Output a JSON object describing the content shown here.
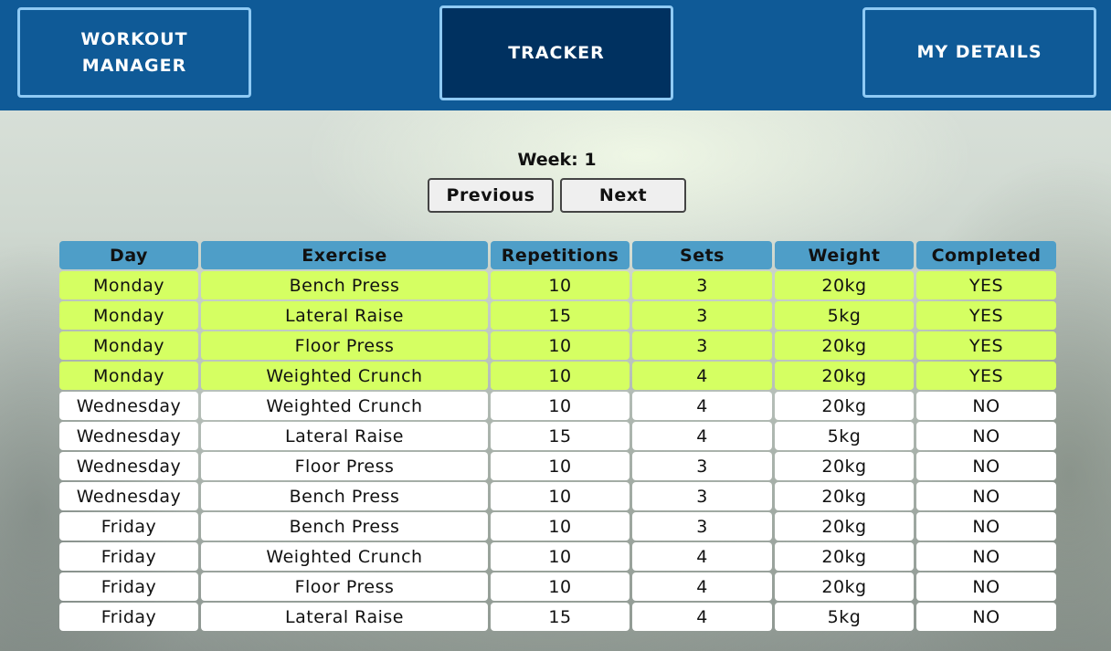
{
  "nav": {
    "workout_manager": "WORKOUT MANAGER",
    "tracker": "TRACKER",
    "my_details": "MY DETAILS"
  },
  "week": {
    "label": "Week: 1"
  },
  "pager": {
    "previous": "Previous",
    "next": "Next"
  },
  "table": {
    "headers": [
      "Day",
      "Exercise",
      "Repetitions",
      "Sets",
      "Weight",
      "Completed"
    ],
    "rows": [
      [
        "Monday",
        "Bench Press",
        "10",
        "3",
        "20kg",
        "YES"
      ],
      [
        "Monday",
        "Lateral Raise",
        "15",
        "3",
        "5kg",
        "YES"
      ],
      [
        "Monday",
        "Floor Press",
        "10",
        "3",
        "20kg",
        "YES"
      ],
      [
        "Monday",
        "Weighted Crunch",
        "10",
        "4",
        "20kg",
        "YES"
      ],
      [
        "Wednesday",
        "Weighted Crunch",
        "10",
        "4",
        "20kg",
        "NO"
      ],
      [
        "Wednesday",
        "Lateral Raise",
        "15",
        "4",
        "5kg",
        "NO"
      ],
      [
        "Wednesday",
        "Floor Press",
        "10",
        "3",
        "20kg",
        "NO"
      ],
      [
        "Wednesday",
        "Bench Press",
        "10",
        "3",
        "20kg",
        "NO"
      ],
      [
        "Friday",
        "Bench Press",
        "10",
        "3",
        "20kg",
        "NO"
      ],
      [
        "Friday",
        "Weighted Crunch",
        "10",
        "4",
        "20kg",
        "NO"
      ],
      [
        "Friday",
        "Floor Press",
        "10",
        "4",
        "20kg",
        "NO"
      ],
      [
        "Friday",
        "Lateral Raise",
        "15",
        "4",
        "5kg",
        "NO"
      ]
    ]
  },
  "colors": {
    "header_bg": "#0f5a97",
    "active_tab_bg": "#003160",
    "tab_border": "#8fcaf4",
    "table_header_bg": "#4e9ec8",
    "completed_row_bg": "#d5ff62",
    "pending_row_bg": "#ffffff"
  }
}
